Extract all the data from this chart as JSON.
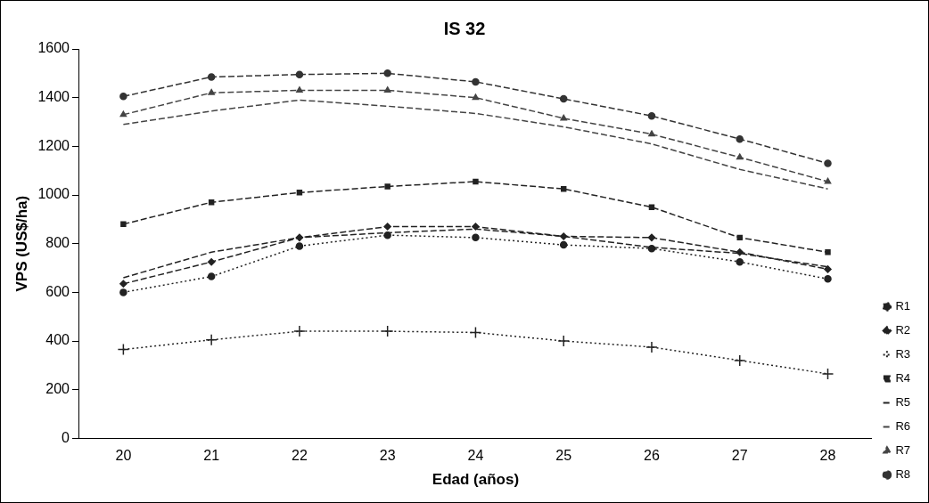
{
  "chart_data": {
    "type": "line",
    "title": "IS 32",
    "xlabel": "Edad (años)",
    "ylabel": "VPS (US$/ha)",
    "categories": [
      "20",
      "21",
      "22",
      "23",
      "24",
      "25",
      "26",
      "27",
      "28"
    ],
    "ylim": [
      0,
      1600
    ],
    "yticks": [
      0,
      200,
      400,
      600,
      800,
      1000,
      1200,
      1400,
      1600
    ],
    "grid": false,
    "legend": "right",
    "series": [
      {
        "name": "R1",
        "color": "#222222",
        "marker": "circle",
        "line_style": "dotted",
        "values": [
          600,
          665,
          790,
          835,
          825,
          795,
          780,
          725,
          655
        ]
      },
      {
        "name": "R2",
        "color": "#222222",
        "marker": "diamond",
        "line_style": "dashed",
        "values": [
          635,
          725,
          825,
          870,
          870,
          830,
          825,
          765,
          695
        ]
      },
      {
        "name": "R3",
        "color": "#222222",
        "marker": "cross",
        "line_style": "dotted",
        "values": [
          365,
          405,
          440,
          440,
          435,
          400,
          375,
          320,
          265
        ]
      },
      {
        "name": "R4",
        "color": "#222222",
        "marker": "square",
        "line_style": "dashed",
        "values": [
          880,
          970,
          1010,
          1035,
          1055,
          1025,
          950,
          825,
          765
        ]
      },
      {
        "name": "R5",
        "color": "#222222",
        "marker": "none",
        "line_style": "dashed",
        "values": [
          660,
          765,
          825,
          845,
          860,
          830,
          785,
          760,
          705
        ]
      },
      {
        "name": "R6",
        "color": "#444444",
        "marker": "none",
        "line_style": "dashed",
        "values": [
          1290,
          1345,
          1390,
          1365,
          1335,
          1280,
          1210,
          1105,
          1025
        ]
      },
      {
        "name": "R7",
        "color": "#444444",
        "marker": "triangle",
        "line_style": "dashed",
        "values": [
          1330,
          1420,
          1430,
          1430,
          1400,
          1315,
          1250,
          1155,
          1055
        ]
      },
      {
        "name": "R8",
        "color": "#333333",
        "marker": "circle",
        "line_style": "dashed",
        "values": [
          1405,
          1485,
          1495,
          1500,
          1465,
          1395,
          1325,
          1230,
          1130
        ]
      }
    ]
  }
}
